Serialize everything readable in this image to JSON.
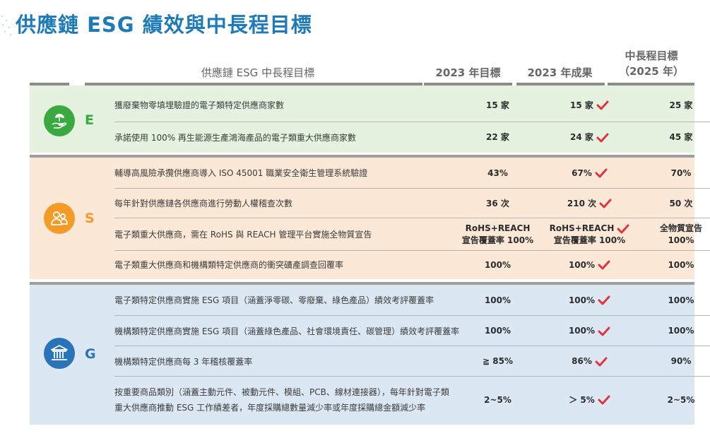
{
  "title": "供應鏈 ESG 績效與中長程目標",
  "headers": {
    "goal": "供應鏈 ESG 中長程目標",
    "target_2023": "2023 年目標",
    "result_2023": "2023 年成果",
    "target_2025_line1": "中長程目標",
    "target_2025_line2": "（2025 年）"
  },
  "colors": {
    "title": "#1f7bb8",
    "e": "#3aa93f",
    "s": "#f39a27",
    "g": "#2a73b9",
    "check": "#e0343f"
  },
  "sections": [
    {
      "letter": "E",
      "icon": "hand-leaf-icon",
      "rows": [
        {
          "goal": "獲廢棄物零填埋驗證的電子類特定供應商家數",
          "target_2023": "15 家",
          "result_2023": "15 家",
          "target_2025": "25 家"
        },
        {
          "goal": "承諾使用 100% 再生能源生產鴻海產品的電子類重大供應商家數",
          "target_2023": "22 家",
          "result_2023": "24 家",
          "target_2025": "45 家"
        }
      ]
    },
    {
      "letter": "S",
      "icon": "people-icon",
      "rows": [
        {
          "goal": "輔導高風險承攬供應商導入 ISO 45001 職業安全衛生管理系統驗證",
          "target_2023": "43%",
          "result_2023": "67%",
          "target_2025": "70%"
        },
        {
          "goal": "每年針對供應鏈各供應商進行勞動人權稽查次數",
          "target_2023": "36 次",
          "result_2023": "210 次",
          "target_2025": "50 次"
        },
        {
          "goal": "電子類重大供應商，需在 RoHS 與 REACH 管理平台實施全物質宣告",
          "target_2023_l1": "RoHS+REACH",
          "target_2023_l2": "宣告覆蓋率 100%",
          "result_2023_l1": "RoHS+REACH",
          "result_2023_l2": "宣告覆蓋率 100%",
          "target_2025_l1": "全物質宣告",
          "target_2025_l2": "100%"
        },
        {
          "goal": "電子類重大供應商和機構類特定供應商的衝突礦產調查回覆率",
          "target_2023": "100%",
          "result_2023": "100%",
          "target_2025": "100%"
        }
      ]
    },
    {
      "letter": "G",
      "icon": "bank-building-icon",
      "rows": [
        {
          "goal": "電子類特定供應商實施 ESG 項目（涵蓋淨零碳、零廢棄、綠色產品）績效考評覆蓋率",
          "target_2023": "100%",
          "result_2023": "100%",
          "target_2025": "100%"
        },
        {
          "goal": "機構類特定供應商實施 ESG 項目（涵蓋綠色產品、社會環境責任、碳管理）績效考評覆蓋率",
          "target_2023": "100%",
          "result_2023": "100%",
          "target_2025": "100%"
        },
        {
          "goal": "機構類特定供應商每 3 年稽核覆蓋率",
          "target_2023": "≧ 85%",
          "result_2023": "86%",
          "target_2025": "90%"
        },
        {
          "goal_l1": "按重要商品類別（涵蓋主動元件、被動元件、模組、PCB、線材連接器），每年針對電子類",
          "goal_l2": "重大供應商推動 ESG 工作績差者，年度採購總數量減少率或年度採購總金額減少率",
          "target_2023": "2~5%",
          "result_2023": "＞ 5%",
          "target_2025": "2~5%"
        }
      ]
    }
  ]
}
